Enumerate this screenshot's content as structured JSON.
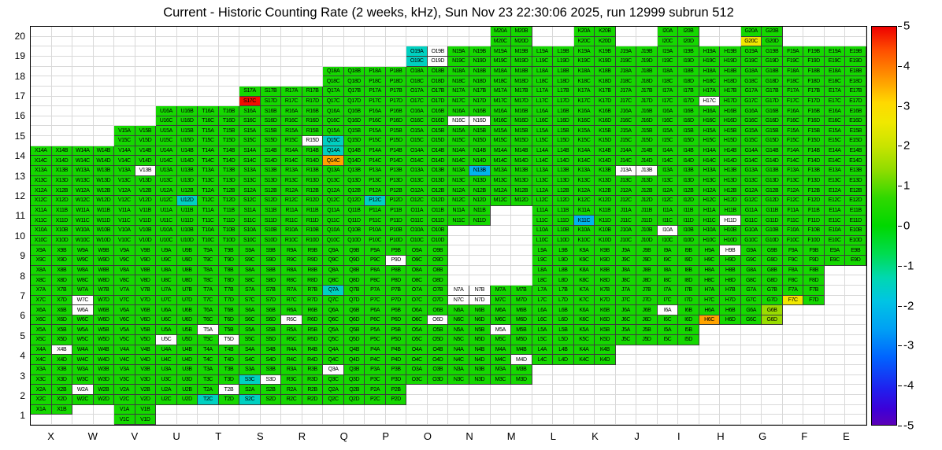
{
  "title": "Current - Historic Counting Rate (2 weeks, kHz), Sun Nov 23 22:30:06 2025, run 12999 subrun 512",
  "chart_data": {
    "type": "heatmap",
    "title": "Current - Historic Counting Rate (2 weeks, kHz), Sun Nov 23 22:30:06 2025, run 12999 subrun 512",
    "x_categories": [
      "X",
      "W",
      "V",
      "U",
      "T",
      "S",
      "R",
      "Q",
      "P",
      "O",
      "N",
      "M",
      "L",
      "K",
      "J",
      "I",
      "H",
      "G",
      "F",
      "E"
    ],
    "y_categories": [
      20,
      19,
      18,
      17,
      16,
      15,
      14,
      13,
      12,
      11,
      10,
      9,
      8,
      7,
      6,
      5,
      4,
      3,
      2,
      1
    ],
    "subcell_order": [
      "A",
      "B",
      "C",
      "D"
    ],
    "zlim": [
      -5,
      5
    ],
    "z_ticks": [
      5,
      4,
      3,
      2,
      1,
      0,
      -1,
      -2,
      -3,
      -4,
      -5
    ],
    "default_value": 0.3,
    "grid": "on",
    "legend_position": "right-colorbar",
    "rows_spec": [
      {
        "row": 20,
        "cols": [
          "M",
          "K",
          "I",
          "G"
        ]
      },
      {
        "row": 19,
        "from": "O",
        "to": "E"
      },
      {
        "row": 18,
        "from": "Q",
        "to": "E"
      },
      {
        "row": 17,
        "from": "S",
        "to": "E"
      },
      {
        "row": 16,
        "from": "U",
        "to": "E"
      },
      {
        "row": 15,
        "from": "V",
        "to": "E"
      },
      {
        "row": 14,
        "from": "X",
        "to": "E"
      },
      {
        "row": 13,
        "from": "X",
        "to": "E"
      },
      {
        "row": 12,
        "from": "X",
        "to": "E"
      },
      {
        "row": 11,
        "from": "X",
        "to": "E",
        "except": [
          "M"
        ]
      },
      {
        "row": 10,
        "from": "X",
        "to": "E",
        "except": [
          "N",
          "M"
        ]
      },
      {
        "row": 9,
        "from": "X",
        "to": "E",
        "except": [
          "N",
          "M"
        ]
      },
      {
        "row": 8,
        "from": "X",
        "to": "F",
        "except": [
          "N",
          "M"
        ]
      },
      {
        "row": 7,
        "from": "X",
        "to": "F"
      },
      {
        "row": 6,
        "from": "X",
        "to": "G"
      },
      {
        "row": 5,
        "from": "X",
        "to": "I"
      },
      {
        "row": 4,
        "from": "X",
        "to": "K"
      },
      {
        "row": 3,
        "from": "X",
        "to": "M"
      },
      {
        "row": 2,
        "from": "X",
        "to": "P"
      },
      {
        "row": 1,
        "cols": [
          "X",
          "V"
        ],
        "partial": {
          "X": [
            "A",
            "B"
          ]
        }
      }
    ],
    "value_overrides": {
      "G20C": 2.6,
      "O19A": -1.5,
      "O19C": -1.5,
      "S17C": 4.9,
      "Q15C": -1.5,
      "Q14A": -1.5,
      "Q14C": 3.6,
      "N13B": -2.2,
      "U12D": -1.5,
      "P12C": -1.5,
      "K11C": -2.2,
      "Q7A": -1.5,
      "F7C": 2.6,
      "H6C": 3.6,
      "G6B": 1.5,
      "G6D": 1.5,
      "S3C": -1.5,
      "T2C": -1.5,
      "S2C": -1.5
    },
    "missing_channels": [
      "O19B",
      "O19D",
      "H17C",
      "N16C",
      "N16D",
      "R15D",
      "V13B",
      "J13A",
      "J13B",
      "H11D",
      "I10A",
      "P9D",
      "H9B",
      "W7C",
      "N7A",
      "N7B",
      "N7C",
      "N7D",
      "W6A",
      "I6A",
      "R6C",
      "O6D",
      "T5A",
      "M5A",
      "U5C",
      "T5D",
      "X4B",
      "M4D",
      "Q3A",
      "S3D",
      "W2A",
      "T2B"
    ],
    "colorbar": {
      "position": "right",
      "stops": [
        [
          5,
          "#ee0000"
        ],
        [
          4.4,
          "#ff5000"
        ],
        [
          3.7,
          "#ff9800"
        ],
        [
          3.1,
          "#ffd800"
        ],
        [
          2.6,
          "#f0e800"
        ],
        [
          2.0,
          "#c8e400"
        ],
        [
          1.4,
          "#90dc00"
        ],
        [
          0.7,
          "#30d800"
        ],
        [
          0,
          "#00d800"
        ],
        [
          -0.7,
          "#00dc50"
        ],
        [
          -1.3,
          "#00d8b0"
        ],
        [
          -1.9,
          "#00c4e4"
        ],
        [
          -2.6,
          "#00a0f4"
        ],
        [
          -3.3,
          "#0064ff"
        ],
        [
          -4.1,
          "#2020ee"
        ],
        [
          -4.6,
          "#3c00d8"
        ],
        [
          -5,
          "#5c00b8"
        ]
      ]
    }
  }
}
